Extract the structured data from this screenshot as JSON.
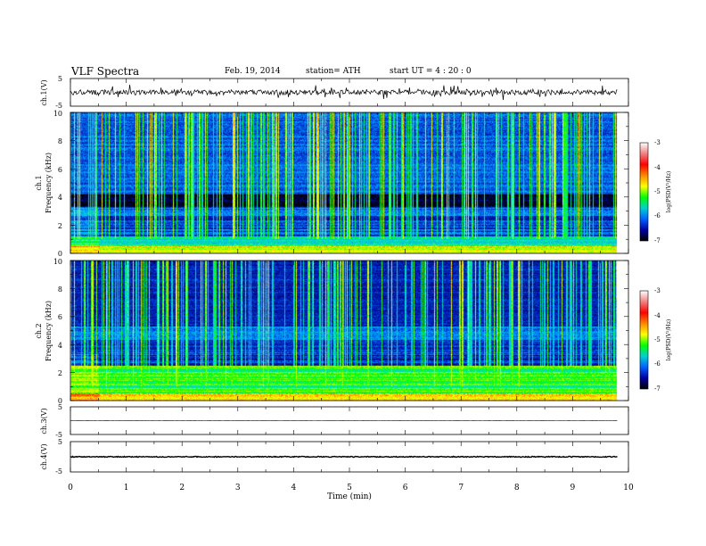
{
  "header": {
    "title": "VLF  Spectra",
    "date": "Feb. 19, 2014",
    "station": "station= ATH",
    "start": "start  UT  =   4  : 20 : 0"
  },
  "colorbar": {
    "label": "log(PSD(V²/Hz)",
    "ticks": [
      "-3",
      "-4",
      "-5",
      "-6",
      "-7"
    ],
    "colors": [
      "#ffffff",
      "#f08080",
      "#ff0000",
      "#ff8800",
      "#ffff00",
      "#00ff00",
      "#00d0d0",
      "#0060ff",
      "#0000a0",
      "#000000"
    ]
  },
  "chart_data": [
    {
      "type": "line",
      "panel": "ch1-waveform",
      "ylabel": "ch.1(V)",
      "yticks": [
        "5",
        "-5"
      ],
      "ylim": [
        -5,
        5
      ],
      "xlim": [
        0,
        10
      ],
      "data_end": 9.8,
      "mean": 0,
      "noise_amplitude": 0.9,
      "spike_amplitude": 2.2
    },
    {
      "type": "heatmap",
      "panel": "ch1-spectrogram",
      "ylabel_channel": "ch.1",
      "ylabel": "Frequency  (kHz)",
      "yticks": [
        "10",
        "8",
        "6",
        "4",
        "2",
        "0"
      ],
      "ylim": [
        0,
        10
      ],
      "xlim": [
        0,
        10
      ],
      "data_end": 9.8,
      "zlim": [
        -7,
        -3
      ],
      "zlabel": "log(PSD(V²/Hz)",
      "background_level_by_band": [
        {
          "f": [
            0,
            0.5
          ],
          "level": -4.6
        },
        {
          "f": [
            0.5,
            1.2
          ],
          "level": -5.4
        },
        {
          "f": [
            1.2,
            3.3
          ],
          "level": -6.3
        },
        {
          "f": [
            3.3,
            4.2
          ],
          "level": -6.9
        },
        {
          "f": [
            4.2,
            10
          ],
          "level": -6.2
        }
      ],
      "broadband_impulse_level": -4.5
    },
    {
      "type": "heatmap",
      "panel": "ch2-spectrogram",
      "ylabel_channel": "ch.2",
      "ylabel": "Frequency  (kHz)",
      "yticks": [
        "10",
        "8",
        "6",
        "4",
        "2",
        "0"
      ],
      "ylim": [
        0,
        10
      ],
      "xlim": [
        0,
        10
      ],
      "data_end": 9.8,
      "zlim": [
        -7,
        -3
      ],
      "zlabel": "log(PSD(V²/Hz)",
      "background_level_by_band": [
        {
          "f": [
            0,
            0.5
          ],
          "level": -4.4
        },
        {
          "f": [
            0.5,
            2.5
          ],
          "level": -5.2
        },
        {
          "f": [
            2.5,
            4.3
          ],
          "level": -6.4
        },
        {
          "f": [
            4.3,
            5.3
          ],
          "level": -6.1
        },
        {
          "f": [
            5.3,
            10
          ],
          "level": -6.5
        }
      ],
      "broadband_impulse_level": -4.7
    },
    {
      "type": "line",
      "panel": "ch3-waveform",
      "ylabel": "ch.3(V)",
      "yticks": [
        "5",
        "-5"
      ],
      "ylim": [
        -5,
        5
      ],
      "xlim": [
        0,
        10
      ],
      "data_end": 9.8,
      "mean": 0,
      "noise_amplitude": 0.05
    },
    {
      "type": "line",
      "panel": "ch4-waveform",
      "ylabel": "ch.4(V)",
      "yticks": [
        "5",
        "-5"
      ],
      "ylim": [
        -5,
        5
      ],
      "xlim": [
        0,
        10
      ],
      "data_end": 9.8,
      "mean": 0,
      "noise_amplitude": 0.15
    }
  ],
  "xaxis": {
    "label": "Time  (min)",
    "ticks": [
      "0",
      "1",
      "2",
      "3",
      "4",
      "5",
      "6",
      "7",
      "8",
      "9",
      "10"
    ]
  }
}
